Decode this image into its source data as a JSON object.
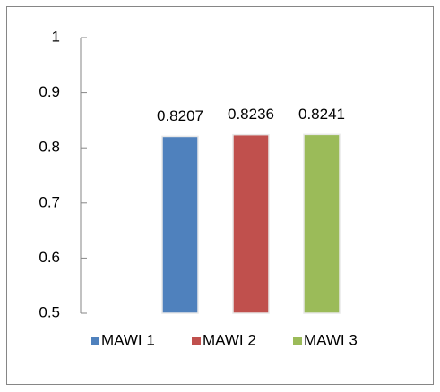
{
  "chart_data": {
    "type": "bar",
    "categories": [
      null
    ],
    "series": [
      {
        "name": "MAWI 1",
        "color": "#4f81bd",
        "values": [
          0.8207
        ]
      },
      {
        "name": "MAWI 2",
        "color": "#c0504d",
        "values": [
          0.8236
        ]
      },
      {
        "name": "MAWI 3",
        "color": "#9bbb59",
        "values": [
          0.8241
        ]
      }
    ],
    "ylim": [
      0.5,
      1
    ],
    "yticks": [
      0.5,
      0.6,
      0.7,
      0.8,
      0.9,
      1
    ],
    "legend": "bottom"
  }
}
